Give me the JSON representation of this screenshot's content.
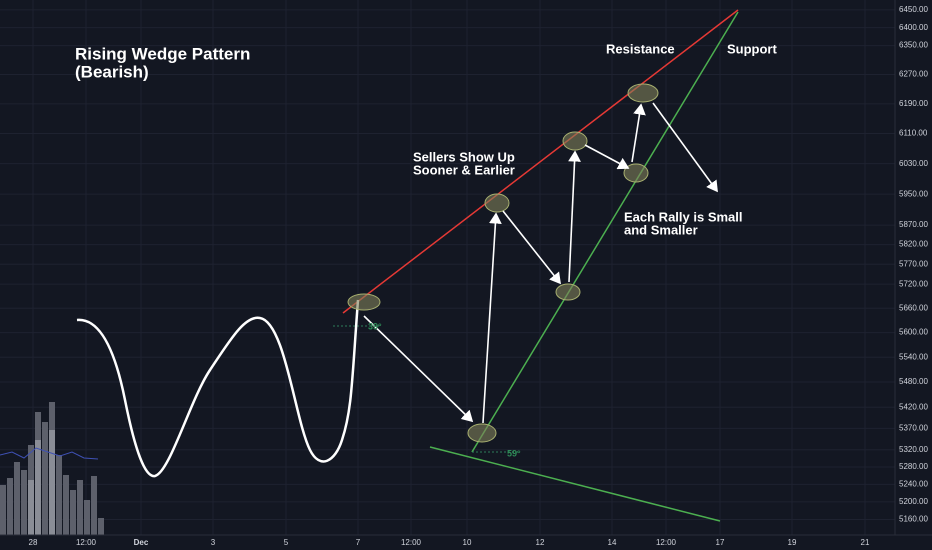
{
  "chart_data": {
    "type": "wedge",
    "title": "Rising Wedge Pattern",
    "subtitle": "(Bearish)",
    "annotations": {
      "resistance": "Resistance",
      "support": "Support",
      "sellers_1": "Sellers Show Up",
      "sellers_2": "Sooner & Earlier",
      "rally_1": "Each Rally is Small",
      "rally_2": "and Smaller",
      "angle_1": "39°",
      "angle_2": "59°"
    },
    "log_scale": true,
    "grid": true,
    "ylim": [
      5125,
      6478
    ],
    "yticks": [
      {
        "value": 6450,
        "label": "6450.00"
      },
      {
        "value": 6400,
        "label": "6400.00"
      },
      {
        "value": 6350,
        "label": "6350.00"
      },
      {
        "value": 6270,
        "label": "6270.00"
      },
      {
        "value": 6190,
        "label": "6190.00"
      },
      {
        "value": 6110,
        "label": "6110.00"
      },
      {
        "value": 6030,
        "label": "6030.00"
      },
      {
        "value": 5950,
        "label": "5950.00"
      },
      {
        "value": 5870,
        "label": "5870.00"
      },
      {
        "value": 5820,
        "label": "5820.00"
      },
      {
        "value": 5770,
        "label": "5770.00"
      },
      {
        "value": 5720,
        "label": "5720.00"
      },
      {
        "value": 5660,
        "label": "5660.00"
      },
      {
        "value": 5600,
        "label": "5600.00"
      },
      {
        "value": 5540,
        "label": "5540.00"
      },
      {
        "value": 5480,
        "label": "5480.00"
      },
      {
        "value": 5420,
        "label": "5420.00"
      },
      {
        "value": 5370,
        "label": "5370.00"
      },
      {
        "value": 5320,
        "label": "5320.00"
      },
      {
        "value": 5280,
        "label": "5280.00"
      },
      {
        "value": 5240,
        "label": "5240.00"
      },
      {
        "value": 5200,
        "label": "5200.00"
      },
      {
        "value": 5160,
        "label": "5160.00"
      }
    ],
    "x_labels": [
      "28",
      "12:00",
      "Dec",
      "3",
      "5",
      "7",
      "12:00",
      "10",
      "12",
      "14",
      "12:00",
      "17",
      "19",
      "21"
    ]
  }
}
